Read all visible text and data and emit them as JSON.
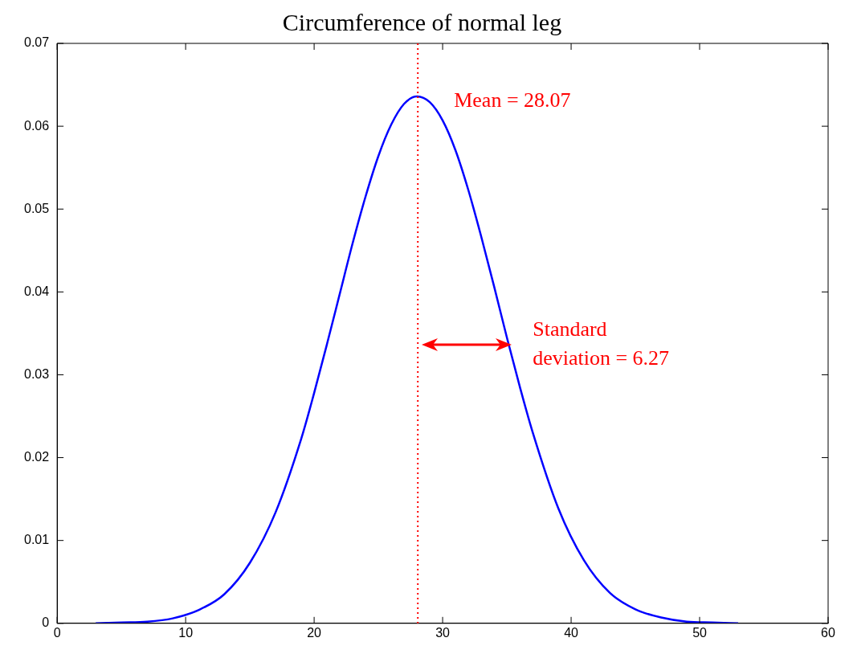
{
  "chart_data": {
    "type": "line",
    "title": "Circumference of normal leg",
    "x": [
      3,
      5,
      7,
      9,
      11,
      13,
      15,
      17,
      19,
      20,
      21,
      22,
      23,
      24,
      25,
      26,
      27,
      28,
      29,
      30,
      31,
      32,
      33,
      34,
      35,
      36,
      37,
      39,
      41,
      43,
      45,
      47,
      49,
      51,
      53
    ],
    "series": [
      {
        "color": "#0000ff",
        "values": [
          0.0,
          0.0001,
          0.0002,
          0.0006,
          0.0016,
          0.0035,
          0.0073,
          0.0134,
          0.0223,
          0.0278,
          0.0337,
          0.0398,
          0.0459,
          0.0515,
          0.0564,
          0.0602,
          0.0627,
          0.0636,
          0.0629,
          0.0607,
          0.0571,
          0.0523,
          0.0467,
          0.0407,
          0.0345,
          0.0286,
          0.0231,
          0.0139,
          0.0076,
          0.0037,
          0.0017,
          0.0007,
          0.0002,
          0.0001,
          0.0
        ]
      }
    ],
    "xlim": [
      0,
      60
    ],
    "xticks": [
      0,
      10,
      20,
      30,
      40,
      50,
      60
    ],
    "ylim": [
      0,
      0.07
    ],
    "yticks": [
      0,
      0.01,
      0.02,
      0.03,
      0.04,
      0.05,
      0.06,
      0.07
    ],
    "grid": false,
    "legend": false,
    "marker": "none",
    "line_style": "solid",
    "ref_lines": [
      {
        "axis": "x",
        "value": 28.07,
        "label": "Mean = 28.07",
        "color": "#ff0000",
        "line_style": "dotted"
      }
    ],
    "annotations": [
      "Standard deviation = 6.27"
    ]
  }
}
